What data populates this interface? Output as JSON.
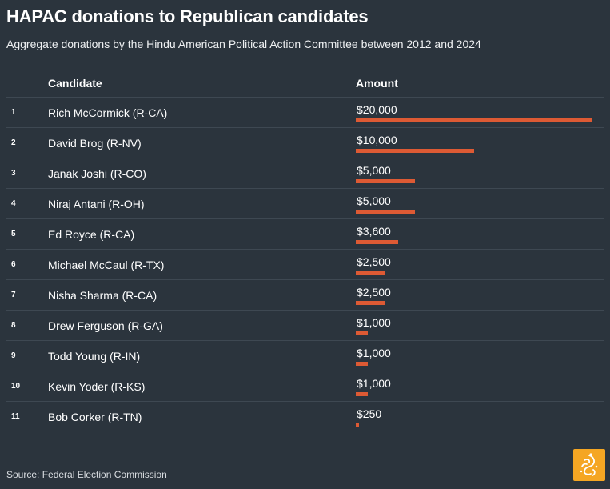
{
  "header": {
    "title": "HAPAC donations to Republican candidates",
    "subtitle": "Aggregate donations by the Hindu American Political Action Committee between 2012 and 2024"
  },
  "columns": {
    "candidate": "Candidate",
    "amount": "Amount"
  },
  "chart_data": {
    "type": "bar",
    "orientation": "horizontal",
    "title": "HAPAC donations to Republican candidates",
    "subtitle": "Aggregate donations by the Hindu American Political Action Committee between 2012 and 2024",
    "xlim": [
      0,
      20000
    ],
    "grid": false,
    "bar_color": "#dd5a34",
    "rows": [
      {
        "rank": "1",
        "candidate": "Rich McCormick (R-CA)",
        "label": "$20,000",
        "value": 20000
      },
      {
        "rank": "2",
        "candidate": "David Brog (R-NV)",
        "label": "$10,000",
        "value": 10000
      },
      {
        "rank": "3",
        "candidate": "Janak Joshi (R-CO)",
        "label": "$5,000",
        "value": 5000
      },
      {
        "rank": "4",
        "candidate": "Niraj Antani (R-OH)",
        "label": "$5,000",
        "value": 5000
      },
      {
        "rank": "5",
        "candidate": "Ed Royce (R-CA)",
        "label": "$3,600",
        "value": 3600
      },
      {
        "rank": "6",
        "candidate": "Michael McCaul (R-TX)",
        "label": "$2,500",
        "value": 2500
      },
      {
        "rank": "7",
        "candidate": "Nisha Sharma (R-CA)",
        "label": "$2,500",
        "value": 2500
      },
      {
        "rank": "8",
        "candidate": "Drew Ferguson (R-GA)",
        "label": "$1,000",
        "value": 1000
      },
      {
        "rank": "9",
        "candidate": "Todd Young (R-IN)",
        "label": "$1,000",
        "value": 1000
      },
      {
        "rank": "10",
        "candidate": "Kevin Yoder (R-KS)",
        "label": "$1,000",
        "value": 1000
      },
      {
        "rank": "11",
        "candidate": "Bob Corker (R-TN)",
        "label": "$250",
        "value": 250
      }
    ]
  },
  "footer": {
    "source": "Source: Federal Election Commission",
    "logo_icon": "al-jazeera-logo-icon",
    "logo_color": "#f5a623"
  }
}
